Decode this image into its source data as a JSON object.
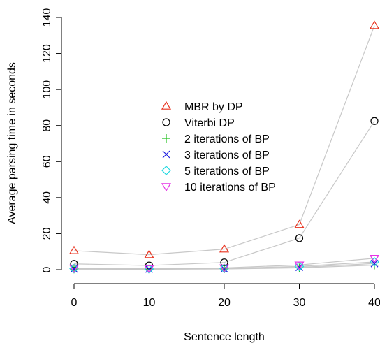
{
  "chart_data": {
    "type": "line",
    "title": "",
    "xlabel": "Sentence length",
    "ylabel": "Average parsing time in seconds",
    "xlim": [
      0,
      40
    ],
    "ylim": [
      0,
      140
    ],
    "x_ticks": [
      "0",
      "10",
      "20",
      "30",
      "40"
    ],
    "y_ticks": [
      "0",
      "20",
      "40",
      "60",
      "80",
      "100",
      "120",
      "140"
    ],
    "grid": false,
    "legend_position": "center",
    "line_color": "#c8c8c8",
    "x": [
      0,
      10,
      20,
      30,
      40
    ],
    "series": [
      {
        "name": "MBR by DP",
        "marker": "triangle-up",
        "color": "#e8321e",
        "values": [
          10.5,
          8.3,
          11.4,
          25,
          135.5
        ]
      },
      {
        "name": "Viterbi DP",
        "marker": "circle",
        "color": "#000000",
        "values": [
          3.2,
          2.3,
          4,
          17.5,
          82.5
        ]
      },
      {
        "name": "2 iterations of BP",
        "marker": "plus",
        "color": "#22c01e",
        "values": [
          0.3,
          0.2,
          0.4,
          1,
          2.5
        ]
      },
      {
        "name": "3 iterations of BP",
        "marker": "cross",
        "color": "#1e1ee0",
        "values": [
          0.4,
          0.3,
          0.5,
          1.3,
          3.4
        ]
      },
      {
        "name": "5 iterations of BP",
        "marker": "diamond",
        "color": "#22d8e0",
        "values": [
          0.6,
          0.4,
          0.7,
          1.8,
          4.3
        ]
      },
      {
        "name": "10 iterations of BP",
        "marker": "triangle-down",
        "color": "#e632e6",
        "values": [
          0.9,
          0.6,
          1,
          2.6,
          6.3
        ]
      }
    ]
  }
}
